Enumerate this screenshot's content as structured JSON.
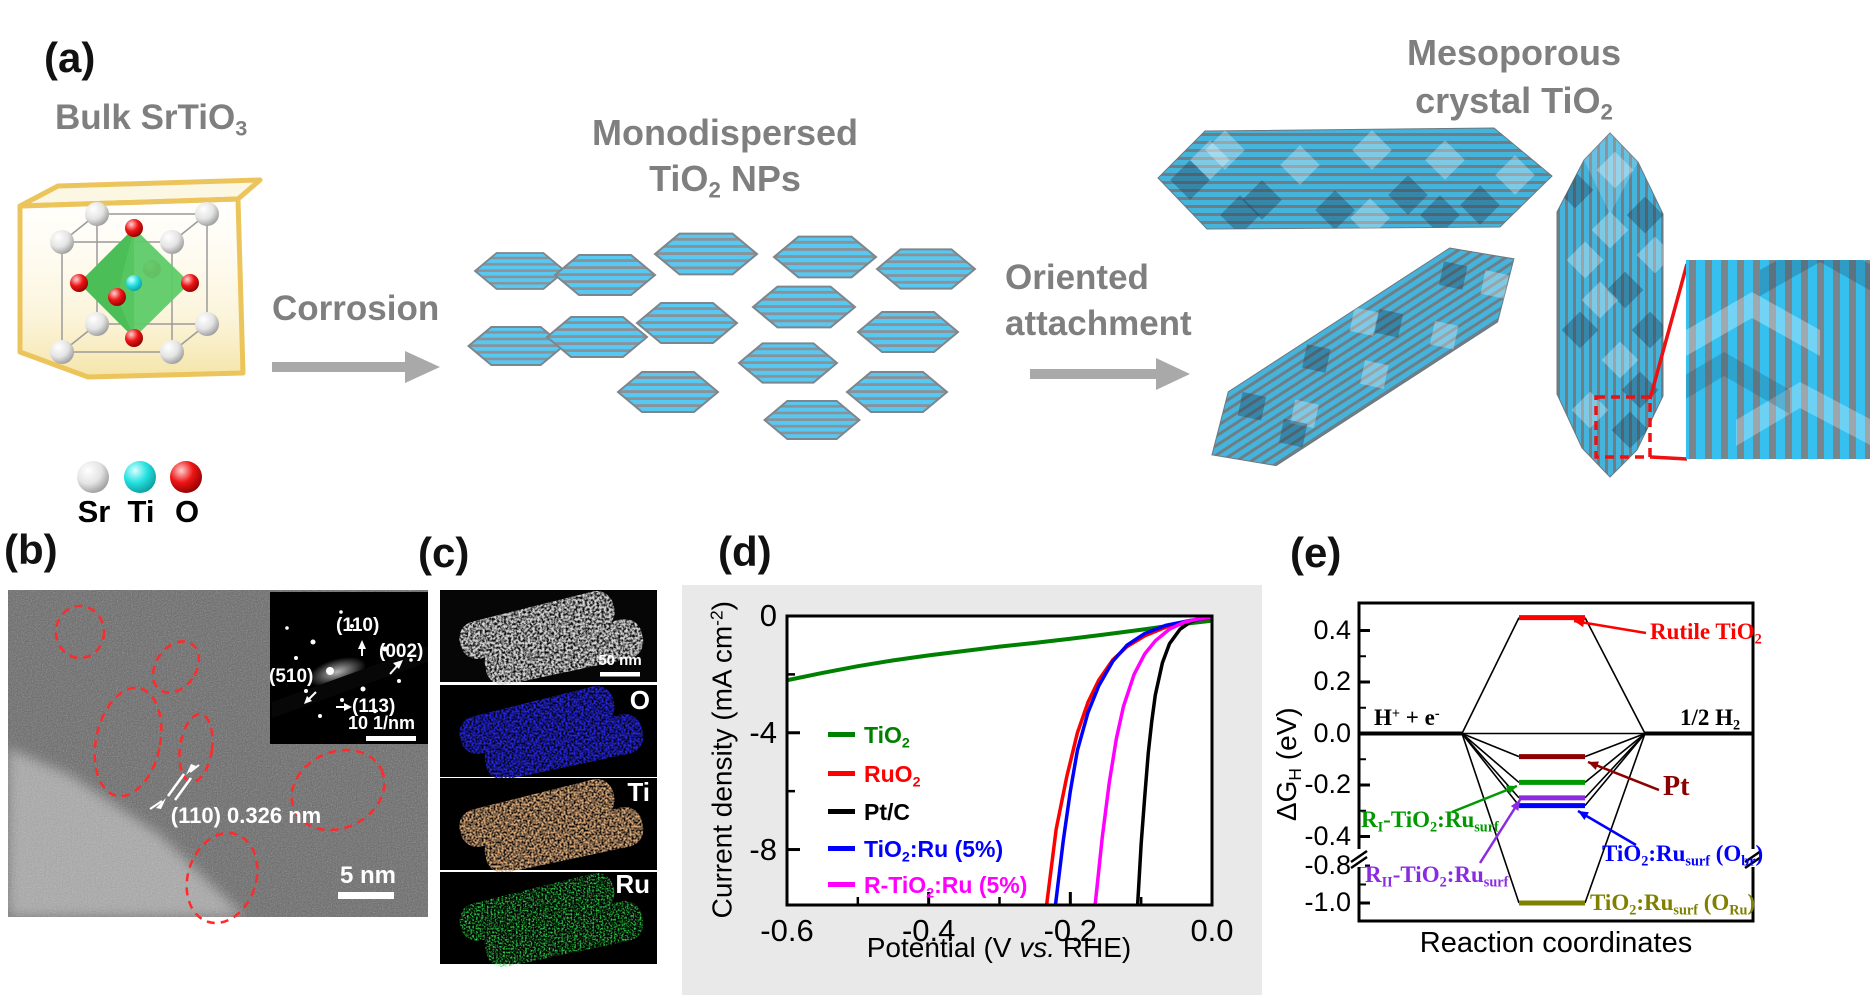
{
  "panel_a": {
    "label": "(a)",
    "bulk_title": {
      "segs": [
        [
          "t",
          "Bulk SrTiO"
        ],
        [
          "b",
          "3"
        ]
      ]
    },
    "atom_legend": [
      {
        "label": "Sr",
        "color": "#d8d8d8"
      },
      {
        "label": "Ti",
        "color": "#1ddede"
      },
      {
        "label": "O",
        "color": "#e51212"
      }
    ],
    "corrosion_label": "Corrosion",
    "mono_title_line1": "Monodispersed",
    "mono_title_line2": {
      "segs": [
        [
          "t",
          "TiO"
        ],
        [
          "b",
          "2"
        ],
        [
          "t",
          " NPs"
        ]
      ]
    },
    "oriented_line1": "Oriented",
    "oriented_line2": "attachment",
    "meso_title_line1": "Mesoporous",
    "meso_title_line2": {
      "segs": [
        [
          "t",
          "crystal TiO"
        ],
        [
          "b",
          "2"
        ]
      ]
    }
  },
  "panel_b": {
    "label": "(b)",
    "lattice_annotation": "(110) 0.326 nm",
    "scale_bar": "5 nm",
    "diffraction": {
      "spot_110": "(110)",
      "spot_002": "(002)",
      "spot_510": "(510)",
      "spot_113": "(113)",
      "scale": "10 1/nm"
    }
  },
  "panel_c": {
    "label": "(c)",
    "scale_bar": "50 nm",
    "maps": [
      {
        "element": "O",
        "color": "#2525e0"
      },
      {
        "element": "Ti",
        "color": "#dcab7c"
      },
      {
        "element": "Ru",
        "color": "#2fd14a"
      }
    ]
  },
  "panel_d": {
    "label": "(d)"
  },
  "panel_e": {
    "label": "(e)"
  },
  "chart_data": [
    {
      "panel": "d",
      "type": "line",
      "title": "",
      "xlabel": "Potential (V vs. RHE)",
      "ylabel": "Current density (mA cm-2)",
      "xlabel_segs": [
        [
          "t",
          "Potential (V "
        ],
        [
          "i",
          "vs."
        ],
        [
          "t",
          " RHE)"
        ]
      ],
      "ylabel_segs": [
        [
          "t",
          "Current density (mA cm"
        ],
        [
          "p",
          "-2"
        ],
        [
          "t",
          ")"
        ]
      ],
      "xlim": [
        -0.6,
        0.0
      ],
      "ylim": [
        -9.9,
        0
      ],
      "grid": false,
      "legend_position": "inside-left",
      "xticks_major": [
        -0.6,
        -0.4,
        -0.2,
        0.0
      ],
      "xtick_labels": [
        "-0.6",
        "-0.4",
        "-0.2",
        "0.0"
      ],
      "xticks_minor": [
        -0.5,
        -0.3,
        -0.1
      ],
      "yticks_major": [
        0,
        -4,
        -8
      ],
      "ytick_labels": [
        "0",
        "-4",
        "-8"
      ],
      "yticks_minor": [
        -2,
        -6
      ],
      "series": [
        {
          "name": "TiO2",
          "color": "#008000",
          "segs": [
            [
              "t",
              "TiO"
            ],
            [
              "b",
              "2"
            ]
          ],
          "x": [
            -0.6,
            -0.55,
            -0.5,
            -0.45,
            -0.4,
            -0.35,
            -0.3,
            -0.25,
            -0.2,
            -0.15,
            -0.1,
            -0.05,
            0
          ],
          "y": [
            -2.2,
            -1.95,
            -1.72,
            -1.52,
            -1.35,
            -1.2,
            -1.05,
            -0.92,
            -0.78,
            -0.63,
            -0.47,
            -0.3,
            -0.16
          ]
        },
        {
          "name": "RuO2",
          "color": "#ff0000",
          "segs": [
            [
              "t",
              "RuO"
            ],
            [
              "b",
              "2"
            ]
          ],
          "x": [
            -0.2335,
            -0.22,
            -0.205,
            -0.19,
            -0.175,
            -0.16,
            -0.14,
            -0.12,
            -0.095,
            -0.065,
            -0.03,
            0
          ],
          "y": [
            -9.9,
            -7.3,
            -5.5,
            -4.0,
            -2.95,
            -2.2,
            -1.5,
            -1.05,
            -0.68,
            -0.38,
            -0.18,
            -0.05
          ]
        },
        {
          "name": "Pt/C",
          "color": "#000000",
          "segs": [
            [
              "t",
              "Pt/C"
            ]
          ],
          "x": [
            -0.105,
            -0.1,
            -0.095,
            -0.09,
            -0.085,
            -0.08,
            -0.07,
            -0.06,
            -0.045,
            -0.03,
            -0.015,
            0
          ],
          "y": [
            -9.9,
            -7.8,
            -6.2,
            -4.7,
            -3.6,
            -2.7,
            -1.6,
            -0.95,
            -0.45,
            -0.2,
            -0.08,
            -0.03
          ]
        },
        {
          "name": "TiO2:Ru (5%)",
          "color": "#0000ff",
          "segs": [
            [
              "t",
              "TiO"
            ],
            [
              "b",
              "2"
            ],
            [
              "t",
              ":Ru (5%)"
            ]
          ],
          "x": [
            -0.221,
            -0.21,
            -0.2,
            -0.19,
            -0.175,
            -0.16,
            -0.14,
            -0.12,
            -0.095,
            -0.065,
            -0.03,
            0
          ],
          "y": [
            -9.9,
            -7.7,
            -6.0,
            -4.6,
            -3.3,
            -2.4,
            -1.55,
            -1.0,
            -0.6,
            -0.32,
            -0.15,
            -0.05
          ]
        },
        {
          "name": "R-TiO2:Ru (5%)",
          "color": "#ff00ff",
          "segs": [
            [
              "t",
              "R-TiO"
            ],
            [
              "b",
              "2"
            ],
            [
              "t",
              ":Ru (5%)"
            ]
          ],
          "x": [
            -0.165,
            -0.155,
            -0.145,
            -0.135,
            -0.125,
            -0.11,
            -0.095,
            -0.08,
            -0.06,
            -0.04,
            -0.02,
            0
          ],
          "y": [
            -9.9,
            -7.6,
            -5.7,
            -4.2,
            -3.1,
            -2.0,
            -1.3,
            -0.85,
            -0.45,
            -0.22,
            -0.1,
            -0.04
          ]
        }
      ]
    },
    {
      "panel": "e",
      "type": "energy-diagram",
      "xlabel": "Reaction coordinates",
      "ylabel": "dG_H (eV)",
      "ylabel_segs": [
        [
          "t",
          "ΔG"
        ],
        [
          "b",
          "H"
        ],
        [
          "t",
          " (eV)"
        ]
      ],
      "initial_state": {
        "energy": 0.0,
        "segs": [
          [
            "t",
            "H"
          ],
          [
            "p",
            "+"
          ],
          [
            "t",
            " + e"
          ],
          [
            "p",
            "-"
          ]
        ]
      },
      "final_state": {
        "energy": 0.0,
        "segs": [
          [
            "t",
            "1/2 H"
          ],
          [
            "b",
            "2"
          ]
        ]
      },
      "yticks_major": [
        0.4,
        0.2,
        0.0,
        -0.2,
        -0.4,
        -0.8,
        -1.0
      ],
      "ytick_labels": [
        "0.4",
        "0.2",
        "0.0",
        "-0.2",
        "-0.4",
        "-0.8",
        "-1.0"
      ],
      "yticks_minor": [
        0.3,
        0.1,
        -0.1,
        -0.3,
        -0.9
      ],
      "axis_break_between": [
        -0.4,
        -0.8
      ],
      "levels": [
        {
          "name": "Rutile TiO2",
          "energy": 0.45,
          "color": "#ff0000",
          "segs": [
            [
              "t",
              "Rutile TiO"
            ],
            [
              "b",
              "2"
            ]
          ]
        },
        {
          "name": "Pt",
          "energy": -0.09,
          "color": "#8b0000",
          "segs": [
            [
              "t",
              "Pt"
            ]
          ]
        },
        {
          "name": "RI-TiO2:Rusurf",
          "energy": -0.19,
          "color": "#009900",
          "segs": [
            [
              "t",
              "R"
            ],
            [
              "b",
              "I"
            ],
            [
              "t",
              "-TiO"
            ],
            [
              "b",
              "2"
            ],
            [
              "t",
              ":Ru"
            ],
            [
              "b",
              "surf"
            ]
          ]
        },
        {
          "name": "RII-TiO2:Rusurf",
          "energy": -0.25,
          "color": "#8a2be2",
          "segs": [
            [
              "t",
              "R"
            ],
            [
              "b",
              "II"
            ],
            [
              "t",
              "-TiO"
            ],
            [
              "b",
              "2"
            ],
            [
              "t",
              ":Ru"
            ],
            [
              "b",
              "surf"
            ]
          ]
        },
        {
          "name": "TiO2:Rusurf (Obr)",
          "energy": -0.28,
          "color": "#0000ff",
          "segs": [
            [
              "t",
              "TiO"
            ],
            [
              "b",
              "2"
            ],
            [
              "t",
              ":Ru"
            ],
            [
              "b",
              "surf"
            ],
            [
              "t",
              " (O"
            ],
            [
              "b",
              "br"
            ],
            [
              "t",
              ")"
            ]
          ]
        },
        {
          "name": "TiO2:Rusurf (ORu)",
          "energy": -1.0,
          "color": "#808000",
          "segs": [
            [
              "t",
              "TiO"
            ],
            [
              "b",
              "2"
            ],
            [
              "t",
              ":Ru"
            ],
            [
              "b",
              "surf"
            ],
            [
              "t",
              " (O"
            ],
            [
              "b",
              "Ru"
            ],
            [
              "t",
              ")"
            ]
          ]
        }
      ]
    }
  ]
}
